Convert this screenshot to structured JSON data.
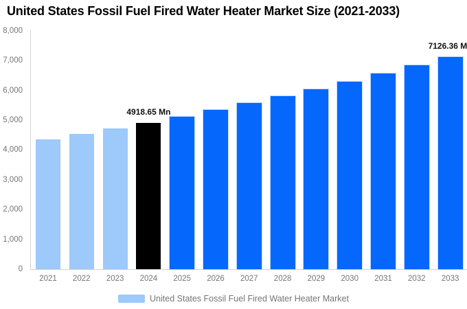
{
  "page": {
    "background": "#ffffff"
  },
  "chart_data": {
    "type": "bar",
    "title": "United States Fossil Fuel Fired Water Heater Market Size (2021-2033)",
    "unit": "Mn",
    "categories": [
      "2021",
      "2022",
      "2023",
      "2024",
      "2025",
      "2026",
      "2027",
      "2028",
      "2029",
      "2030",
      "2031",
      "2032",
      "2033"
    ],
    "values": [
      4347,
      4530,
      4720,
      4918.65,
      5126,
      5342,
      5567,
      5801,
      6046,
      6300,
      6566,
      6842,
      7126.36
    ],
    "segments": [
      "historical",
      "historical",
      "historical",
      "current",
      "forecast",
      "forecast",
      "forecast",
      "forecast",
      "forecast",
      "forecast",
      "forecast",
      "forecast",
      "forecast"
    ],
    "colors": {
      "historical": "#9DC9FB",
      "current": "#000000",
      "forecast": "#0567FB"
    },
    "annotations": [
      {
        "category": "2024",
        "text": "4918.65 Mn"
      },
      {
        "category": "2033",
        "text": "7126.36 Mn"
      }
    ],
    "ylim": [
      0,
      8000
    ],
    "ytick_step": 1000,
    "ytick_labels": [
      "0",
      "1,000",
      "2,000",
      "3,000",
      "4,000",
      "5,000",
      "6,000",
      "7,000",
      "8,000"
    ],
    "grid": false,
    "axis_color": "#cfd2d6",
    "tick_label_color": "#757575",
    "legend": {
      "position": "bottom",
      "items": [
        {
          "label": "United States Fossil Fuel Fired Water Heater Market",
          "swatch_color": "#9DC9FB"
        }
      ]
    }
  }
}
